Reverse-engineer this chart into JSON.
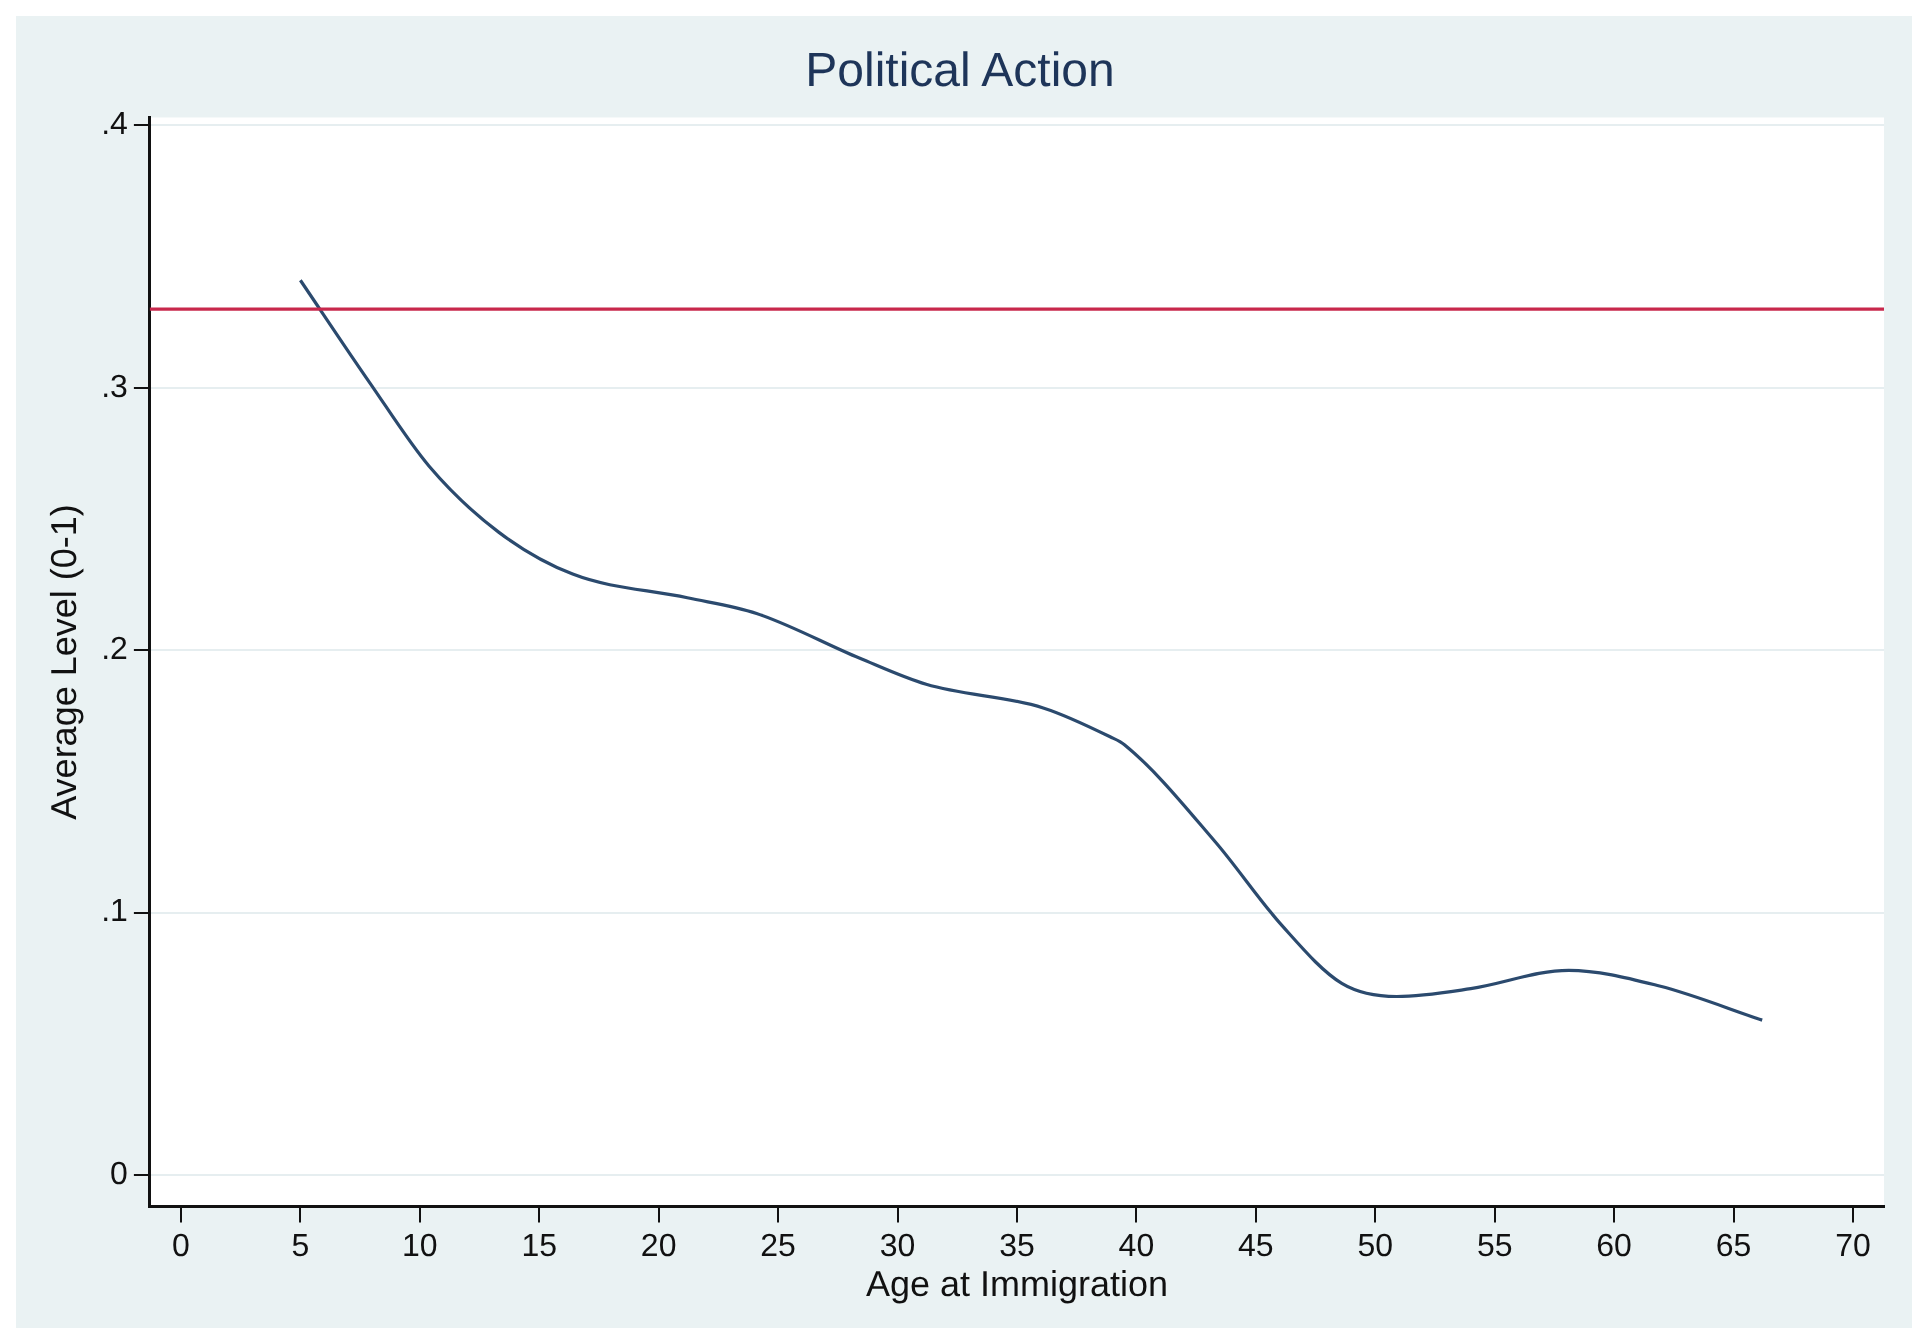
{
  "chart_data": {
    "type": "line",
    "title": "Political Action",
    "xlabel": "Age at Immigration",
    "ylabel": "Average Level (0-1)",
    "series": [
      {
        "color": "#2b4a6e",
        "x": [
          5.0,
          7.9,
          10.4,
          13.3,
          16.4,
          21.2,
          24.1,
          28.4,
          31.2,
          36.1,
          38.9,
          39.5,
          43.3,
          46.1,
          48.6,
          50.9,
          54.0,
          58.1,
          61.9,
          66.2
        ],
        "values": [
          0.341,
          0.302,
          0.27,
          0.245,
          0.229,
          0.22,
          0.214,
          0.197,
          0.187,
          0.178,
          0.167,
          0.164,
          0.127,
          0.095,
          0.073,
          0.068,
          0.071,
          0.078,
          0.072,
          0.059
        ]
      }
    ],
    "xlim": [
      -1.3,
      71.3
    ],
    "xticks": [
      0,
      5,
      10,
      15,
      20,
      25,
      30,
      35,
      40,
      45,
      50,
      55,
      60,
      65,
      70
    ],
    "ylim": [
      -0.012,
      0.403
    ],
    "yticks": [
      {
        "value": 0,
        "label": "0"
      },
      {
        "value": 0.1,
        "label": ".1"
      },
      {
        "value": 0.2,
        "label": ".2"
      },
      {
        "value": 0.3,
        "label": ".3"
      },
      {
        "value": 0.4,
        "label": ".4"
      }
    ],
    "ref_lines": [
      {
        "axis": "y",
        "value": 0.33,
        "color": "#c8284c"
      }
    ],
    "grid": "y",
    "legend": false,
    "marker": "none",
    "line_style": "solid"
  }
}
